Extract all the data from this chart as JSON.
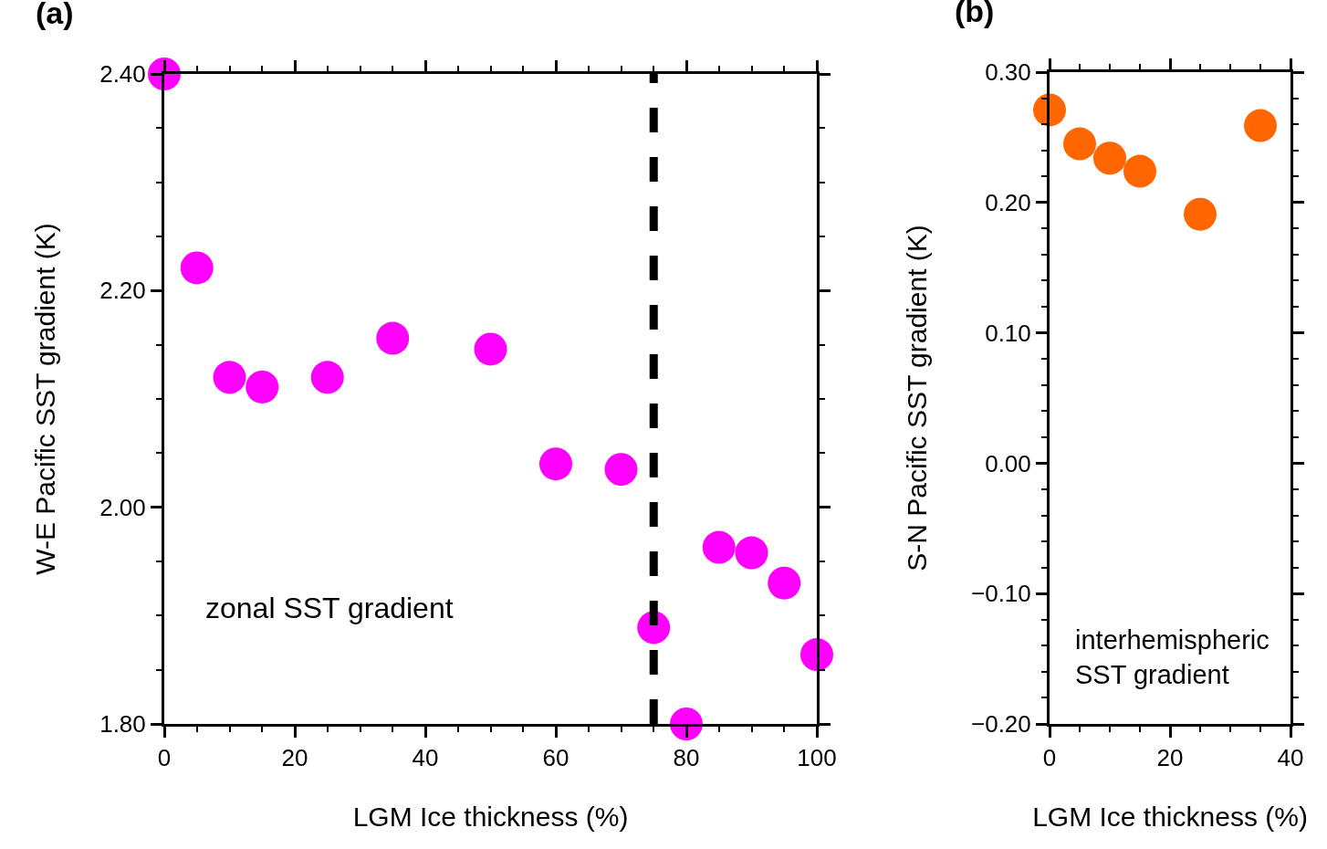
{
  "chart_data": [
    {
      "type": "scatter",
      "title": "(a)",
      "xlabel": "LGM Ice thickness (%)",
      "ylabel": "W-E Pacific SST gradient (K)",
      "annotations": [
        "zonal SST gradient"
      ],
      "x": [
        0,
        5,
        10,
        15,
        25,
        35,
        50,
        60,
        70,
        75,
        80,
        85,
        90,
        95,
        100
      ],
      "series": [
        {
          "color": "#ff00ff",
          "values": [
            2.4,
            2.221,
            2.12,
            2.111,
            2.12,
            2.156,
            2.146,
            2.04,
            2.035,
            1.889,
            1.8,
            1.963,
            1.958,
            1.93,
            1.864
          ]
        }
      ],
      "marker": "circle",
      "grid": false,
      "xlim": [
        0,
        100
      ],
      "xticks": [
        0,
        {
          "value": 5,
          "label": null
        },
        {
          "value": 10,
          "label": null
        },
        {
          "value": 15,
          "label": null
        },
        20,
        {
          "value": 25,
          "label": null
        },
        {
          "value": 30,
          "label": null
        },
        {
          "value": 35,
          "label": null
        },
        40,
        {
          "value": 45,
          "label": null
        },
        {
          "value": 50,
          "label": null
        },
        {
          "value": 55,
          "label": null
        },
        60,
        {
          "value": 65,
          "label": null
        },
        {
          "value": 70,
          "label": null
        },
        {
          "value": 75,
          "label": null
        },
        80,
        {
          "value": 85,
          "label": null
        },
        {
          "value": 90,
          "label": null
        },
        {
          "value": 95,
          "label": null
        },
        100
      ],
      "ylim": [
        1.8,
        2.4
      ],
      "yticks": [
        {
          "value": 1.8,
          "label": "1.80"
        },
        {
          "value": 1.85,
          "label": null
        },
        {
          "value": 1.9,
          "label": null
        },
        {
          "value": 1.95,
          "label": null
        },
        {
          "value": 2.0,
          "label": "2.00"
        },
        {
          "value": 2.05,
          "label": null
        },
        {
          "value": 2.1,
          "label": null
        },
        {
          "value": 2.15,
          "label": null
        },
        {
          "value": 2.2,
          "label": "2.20"
        },
        {
          "value": 2.25,
          "label": null
        },
        {
          "value": 2.3,
          "label": null
        },
        {
          "value": 2.35,
          "label": null
        },
        {
          "value": 2.4,
          "label": "2.40"
        }
      ],
      "ref_lines": [
        {
          "axis": "x",
          "value": 75,
          "color": "#000000",
          "line_style": "dashed"
        }
      ]
    },
    {
      "type": "scatter",
      "title": "(b)",
      "xlabel": "LGM Ice thickness (%)",
      "ylabel": "S-N Pacific SST gradient (K)",
      "annotations": [
        "interhemispheric\nSST gradient"
      ],
      "x": [
        0,
        5,
        10,
        15,
        25,
        35
      ],
      "series": [
        {
          "color": "#ff6600",
          "values": [
            0.271,
            0.245,
            0.234,
            0.224,
            0.191,
            0.259
          ]
        }
      ],
      "marker": "circle",
      "grid": false,
      "xlim": [
        0,
        40
      ],
      "xticks": [
        0,
        {
          "value": 5,
          "label": null
        },
        {
          "value": 10,
          "label": null
        },
        {
          "value": 15,
          "label": null
        },
        20,
        {
          "value": 25,
          "label": null
        },
        {
          "value": 30,
          "label": null
        },
        {
          "value": 35,
          "label": null
        },
        40
      ],
      "ylim": [
        -0.2,
        0.3
      ],
      "yticks": [
        {
          "value": -0.2,
          "label": "−0.20"
        },
        {
          "value": -0.18,
          "label": null
        },
        {
          "value": -0.16,
          "label": null
        },
        {
          "value": -0.14,
          "label": null
        },
        {
          "value": -0.12,
          "label": null
        },
        {
          "value": -0.1,
          "label": "−0.10"
        },
        {
          "value": -0.08,
          "label": null
        },
        {
          "value": -0.06,
          "label": null
        },
        {
          "value": -0.04,
          "label": null
        },
        {
          "value": -0.02,
          "label": null
        },
        {
          "value": 0,
          "label": "0.00"
        },
        {
          "value": 0.02,
          "label": null
        },
        {
          "value": 0.04,
          "label": null
        },
        {
          "value": 0.06,
          "label": null
        },
        {
          "value": 0.08,
          "label": null
        },
        {
          "value": 0.1,
          "label": "0.10"
        },
        {
          "value": 0.12,
          "label": null
        },
        {
          "value": 0.14,
          "label": null
        },
        {
          "value": 0.16,
          "label": null
        },
        {
          "value": 0.18,
          "label": null
        },
        {
          "value": 0.2,
          "label": "0.20"
        },
        {
          "value": 0.22,
          "label": null
        },
        {
          "value": 0.24,
          "label": null
        },
        {
          "value": 0.26,
          "label": null
        },
        {
          "value": 0.28,
          "label": null
        },
        {
          "value": 0.3,
          "label": "0.30"
        }
      ]
    }
  ]
}
